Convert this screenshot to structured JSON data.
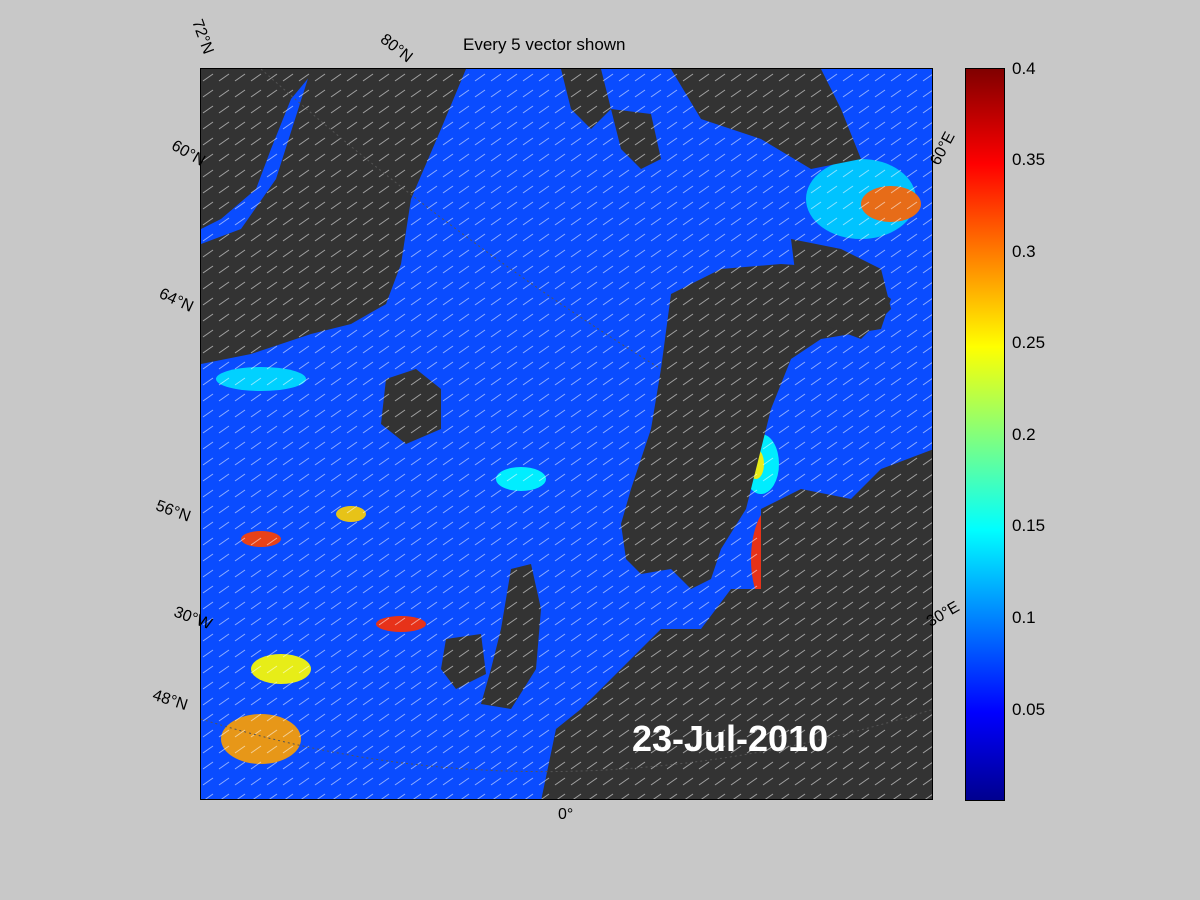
{
  "title": "Every 5 vector shown",
  "date": "23-Jul-2010",
  "labels": {
    "lat72": "72°N",
    "lat68": "60°N",
    "lat64": "64°N",
    "lat56": "56°N",
    "lat48": "48°N",
    "lon80": "80°N",
    "lon30w": "30°W",
    "lon0": "0°",
    "lon30e": "30°E",
    "lon60e": "60°E"
  },
  "colorbar": {
    "min": 0,
    "max": 0.4,
    "ticks": [
      "0.4",
      "0.35",
      "0.3",
      "0.25",
      "0.2",
      "0.15",
      "0.1",
      "0.05"
    ],
    "colors": [
      "#00008f",
      "#0000ff",
      "#00ffff",
      "#ffff00",
      "#ff0000",
      "#800000"
    ]
  },
  "colors": {
    "background": "#c8c8c8",
    "land": "#333333",
    "ocean": "#0a4cff"
  }
}
